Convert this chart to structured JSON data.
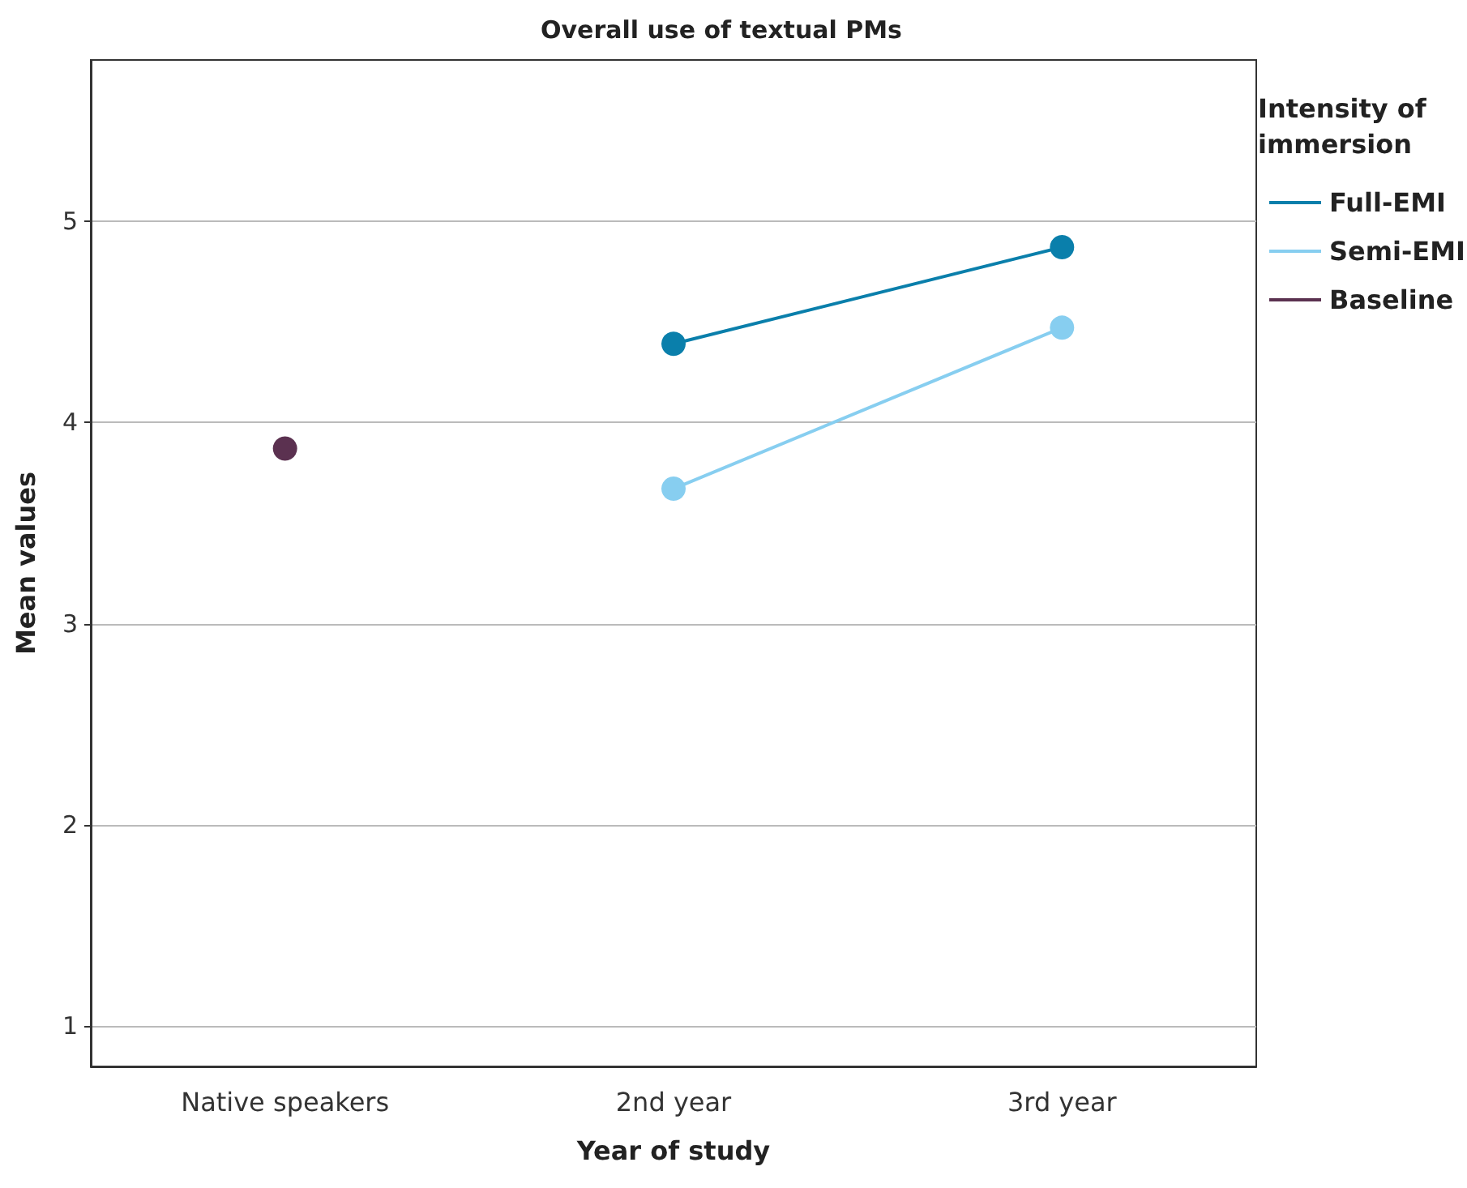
{
  "chart_data": {
    "type": "line",
    "title": "Overall use of textual PMs",
    "xlabel": "Year of study",
    "ylabel": "Mean values",
    "legend_title": "Intensity of immersion",
    "categories": [
      "Native speakers",
      "2nd year",
      "3rd year"
    ],
    "series": [
      {
        "name": "Full-EMI",
        "color": "#0a7fab",
        "values": [
          null,
          4.39,
          4.87
        ]
      },
      {
        "name": "Semi-EMI",
        "color": "#87cef0",
        "values": [
          null,
          3.67,
          4.47
        ]
      },
      {
        "name": "Baseline",
        "color": "#5b3150",
        "values": [
          3.87,
          null,
          null
        ]
      }
    ],
    "ylim": [
      0.8,
      5.8
    ],
    "yticks": [
      1,
      2,
      3,
      4,
      5
    ],
    "grid": "y",
    "legend": "top right",
    "marker": "circle",
    "line_style": "solid"
  }
}
